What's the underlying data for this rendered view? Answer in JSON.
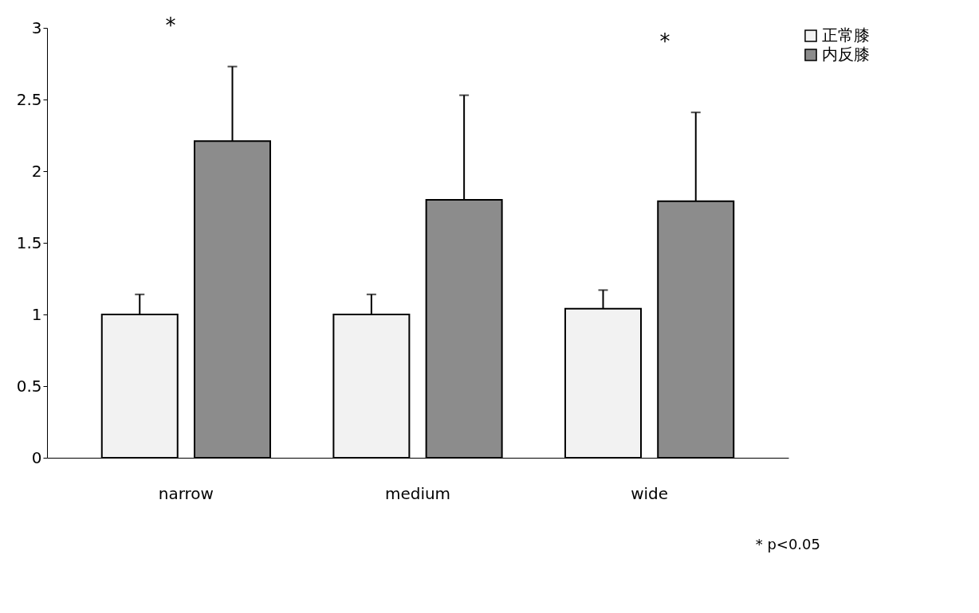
{
  "chart_data": {
    "type": "bar",
    "categories": [
      "narrow",
      "medium",
      "wide"
    ],
    "series": [
      {
        "name": "正常膝",
        "color": "#f2f2f2",
        "values": [
          1.0,
          1.0,
          1.04
        ],
        "errors": [
          [
            1.0,
            1.14
          ],
          [
            1.0,
            1.14
          ],
          [
            1.04,
            1.17
          ]
        ]
      },
      {
        "name": "内反膝",
        "color": "#8c8c8c",
        "values": [
          2.21,
          1.8,
          1.79
        ],
        "errors": [
          [
            2.21,
            2.73
          ],
          [
            1.8,
            2.53
          ],
          [
            1.79,
            2.41
          ]
        ]
      }
    ],
    "ylim": [
      0,
      3
    ],
    "yticks": [
      0,
      0.5,
      1,
      1.5,
      2,
      2.5,
      3
    ],
    "grid": false,
    "legend": "top right",
    "annotations": [
      "*",
      "*",
      "* p<0.05"
    ]
  }
}
